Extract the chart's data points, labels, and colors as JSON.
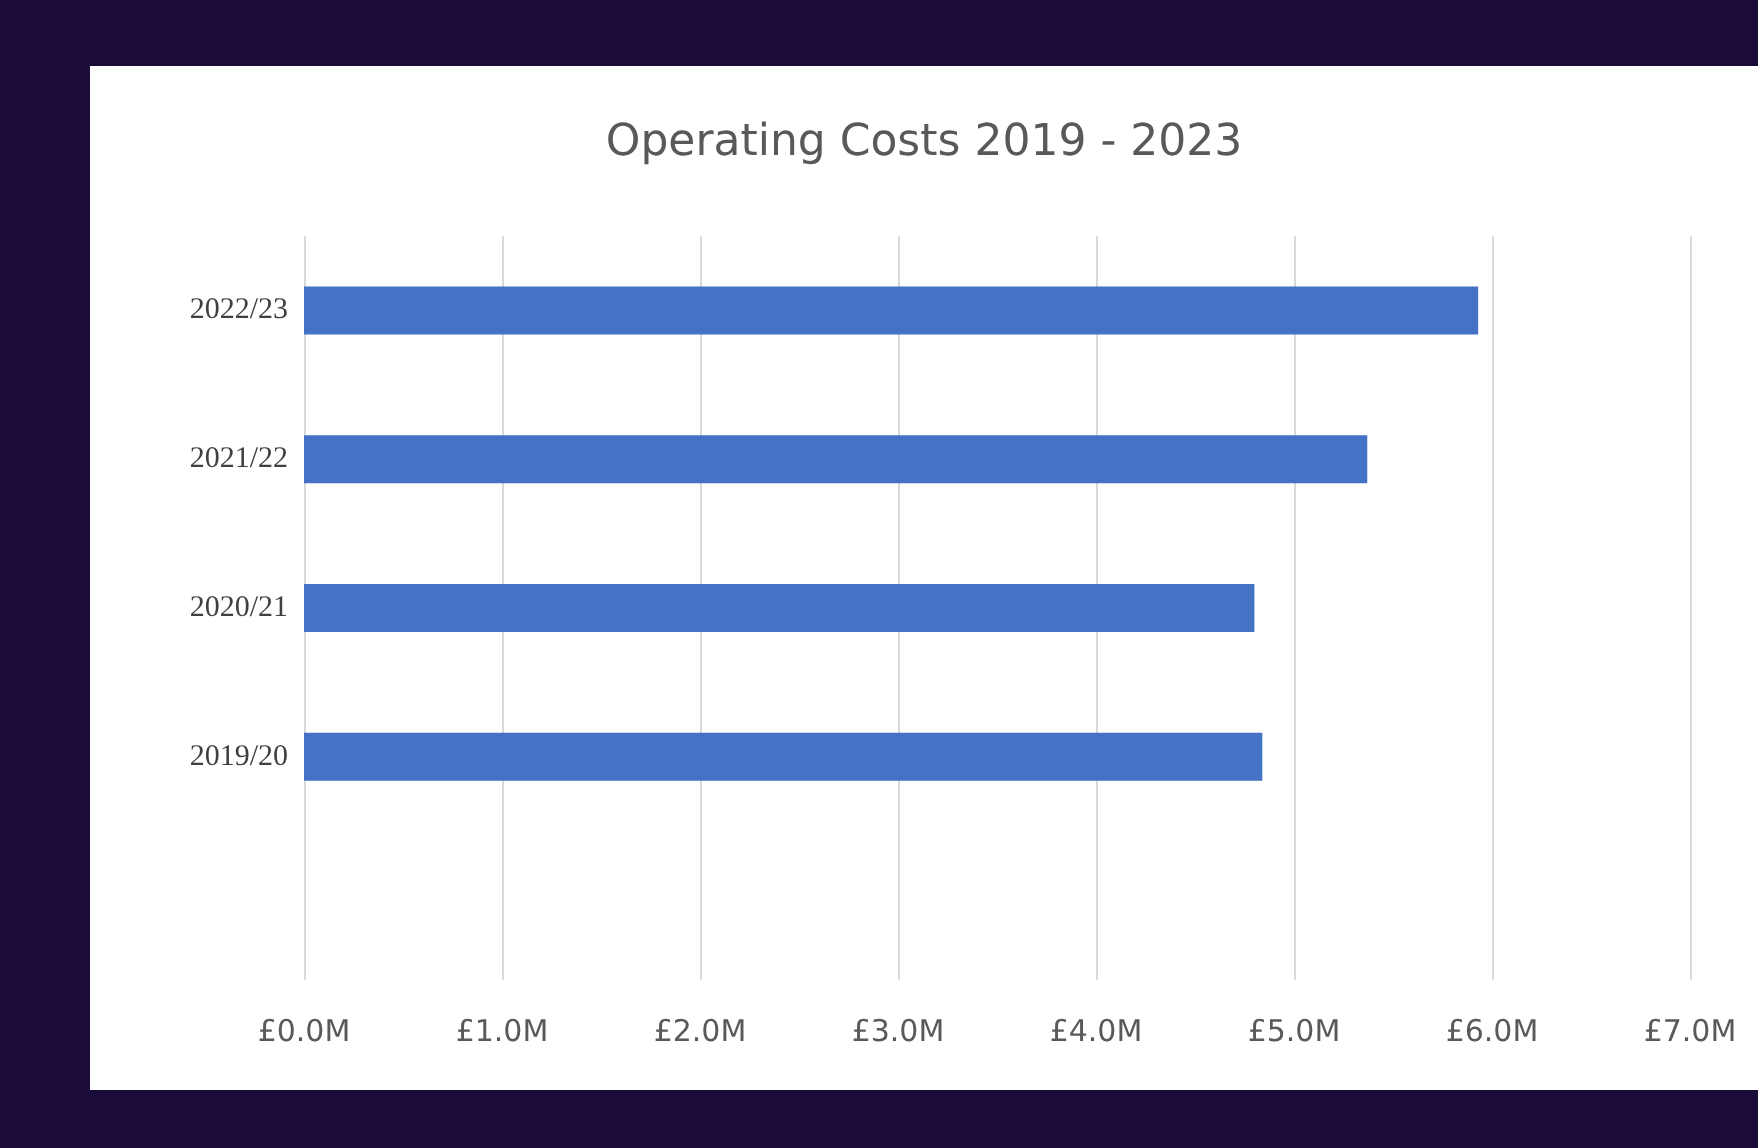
{
  "chart_data": {
    "type": "bar",
    "orientation": "horizontal",
    "title": "Operating Costs 2019 - 2023",
    "categories": [
      "2022/23",
      "2021/22",
      "2020/21",
      "2019/20",
      null
    ],
    "values": [
      5.93,
      5.37,
      4.8,
      4.84,
      null
    ],
    "color": "#4472c4",
    "xlim": [
      0,
      7
    ],
    "xticks": [
      {
        "value": 0,
        "label": "£0.0M"
      },
      {
        "value": 1,
        "label": "£1.0M"
      },
      {
        "value": 2,
        "label": "£2.0M"
      },
      {
        "value": 3,
        "label": "£3.0M"
      },
      {
        "value": 4,
        "label": "£4.0M"
      },
      {
        "value": 5,
        "label": "£5.0M"
      },
      {
        "value": 6,
        "label": "£6.0M"
      },
      {
        "value": 7,
        "label": "£7.0M"
      }
    ],
    "grid": "x"
  }
}
